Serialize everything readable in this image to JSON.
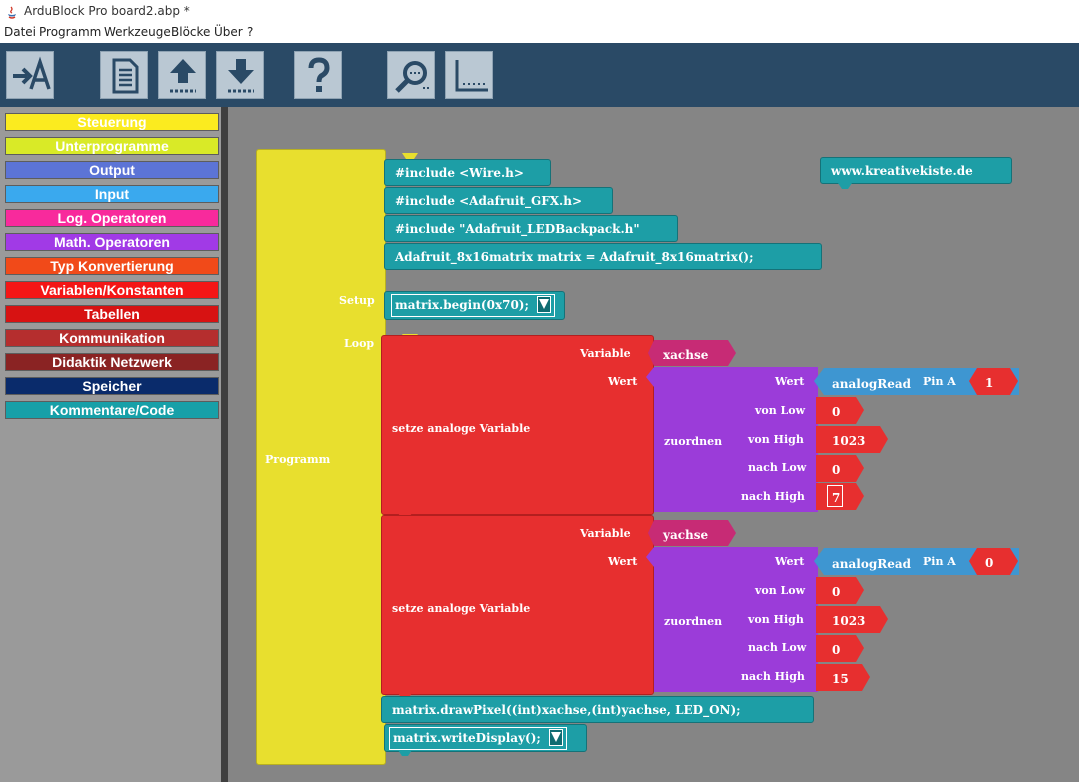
{
  "window": {
    "title": "ArduBlock Pro board2.abp *"
  },
  "menu": {
    "items": [
      "Datei",
      "Programm",
      "Werkzeuge",
      "Blöcke",
      "Über",
      "?"
    ]
  },
  "toolbar": {
    "buttons": [
      {
        "icon": "arrow-to-a-icon"
      },
      {
        "icon": "document-icon"
      },
      {
        "icon": "upload-icon"
      },
      {
        "icon": "download-icon"
      },
      {
        "icon": "help-icon"
      },
      {
        "icon": "serial-monitor-icon"
      },
      {
        "icon": "plotter-icon"
      }
    ]
  },
  "palette": {
    "categories": [
      {
        "label": "Steuerung",
        "color": "#fbeb1f"
      },
      {
        "label": "Unterprogramme",
        "color": "#d9ea27"
      },
      {
        "label": "Output",
        "color": "#5c74d6"
      },
      {
        "label": "Input",
        "color": "#3aa9ee"
      },
      {
        "label": "Log. Operatoren",
        "color": "#f82a9c"
      },
      {
        "label": "Math. Operatoren",
        "color": "#a13ae6"
      },
      {
        "label": "Typ Konvertierung",
        "color": "#f14a19"
      },
      {
        "label": "Variablen/Konstanten",
        "color": "#f41616"
      },
      {
        "label": "Tabellen",
        "color": "#d71212"
      },
      {
        "label": "Kommunikation",
        "color": "#b52e2e"
      },
      {
        "label": "Didaktik Netzwerk",
        "color": "#8a2323"
      },
      {
        "label": "Speicher",
        "color": "#0a2b6b"
      },
      {
        "label": "Kommentare/Code",
        "color": "#17a0a8"
      }
    ]
  },
  "colors": {
    "program": "#e8df2e",
    "code": "#1d9ea6",
    "set_var": "#e72f2f",
    "map": "#9b3cd9",
    "var_name": "#c72b75",
    "analog_read": "#3e96d1",
    "number": "#e72f2f",
    "workspace": "#858585"
  },
  "program": {
    "label": "Programm",
    "setup_label": "Setup",
    "loop_label": "Loop",
    "includes": [
      "#include <Wire.h>",
      "#include <Adafruit_GFX.h>",
      "#include \"Adafruit_LEDBackpack.h\"",
      "Adafruit_8x16matrix matrix = Adafruit_8x16matrix();"
    ],
    "setup_code": "matrix.begin(0x70);",
    "comment": "www.kreativekiste.de",
    "loop": [
      {
        "block_label": "setze analoge Variable",
        "variable_label": "Variable",
        "variable": "xachse",
        "wert_label": "Wert",
        "map_label": "zuordnen",
        "wert_sub_label": "Wert",
        "read_label": "analogRead",
        "pin_label": "Pin A",
        "pin": "1",
        "von_low_label": "von Low",
        "von_low": "0",
        "von_high_label": "von High",
        "von_high": "1023",
        "nach_low_label": "nach Low",
        "nach_low": "0",
        "nach_high_label": "nach High",
        "nach_high": "7"
      },
      {
        "block_label": "setze analoge Variable",
        "variable_label": "Variable",
        "variable": "yachse",
        "wert_label": "Wert",
        "map_label": "zuordnen",
        "wert_sub_label": "Wert",
        "read_label": "analogRead",
        "pin_label": "Pin A",
        "pin": "0",
        "von_low_label": "von Low",
        "von_low": "0",
        "von_high_label": "von High",
        "von_high": "1023",
        "nach_low_label": "nach Low",
        "nach_low": "0",
        "nach_high_label": "nach High",
        "nach_high": "15"
      }
    ],
    "draw_code": "matrix.drawPixel((int)xachse,(int)yachse, LED_ON);",
    "write_code": "matrix.writeDisplay();"
  }
}
